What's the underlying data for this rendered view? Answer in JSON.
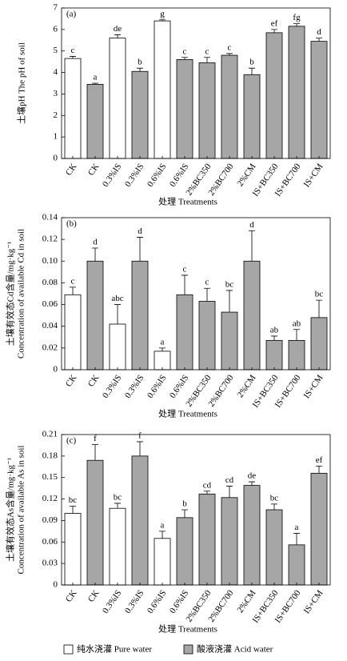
{
  "legend": [
    {
      "name": "纯水浇灌 Pure water",
      "color": "#ffffff"
    },
    {
      "name": "酸液浇灌 Acid water",
      "color": "#a6a6a6"
    }
  ],
  "chart_data": [
    {
      "type": "bar",
      "panel": "(a)",
      "y_title": [
        "土壤pH The pH of soil"
      ],
      "x_title": "处理 Treatments",
      "categories": [
        "CK",
        "CK",
        "0.3%IS",
        "0.3%IS",
        "0.6%IS",
        "0.6%IS",
        "2%BC350",
        "2%BC700",
        "2%CM",
        "IS+BC350",
        "IS+BC700",
        "IS+CM"
      ],
      "series": [
        {
          "values": [
            4.65,
            null,
            5.6,
            null,
            6.4,
            null,
            null,
            null,
            null,
            null,
            null,
            null
          ],
          "errors": [
            0.1,
            null,
            0.15,
            null,
            0.05,
            null,
            null,
            null,
            null,
            null,
            null,
            null
          ],
          "letters": [
            "c",
            null,
            "de",
            null,
            "g",
            null,
            null,
            null,
            null,
            null,
            null,
            null
          ]
        },
        {
          "values": [
            null,
            3.45,
            null,
            4.05,
            null,
            4.6,
            4.45,
            4.8,
            3.9,
            5.85,
            6.15,
            5.45
          ],
          "errors": [
            null,
            0.05,
            null,
            0.15,
            null,
            0.1,
            0.25,
            0.08,
            0.3,
            0.15,
            0.12,
            0.15
          ],
          "letters": [
            null,
            "a",
            null,
            "b",
            null,
            "c",
            "c",
            "c",
            "b",
            "ef",
            "fg",
            "d"
          ]
        }
      ],
      "ylim": [
        0,
        7
      ],
      "yticks": [
        0,
        1,
        2,
        3,
        4,
        5,
        6,
        7
      ]
    },
    {
      "type": "bar",
      "panel": "(b)",
      "y_title": [
        "土壤有效态Cd含量/mg·kg⁻¹",
        "Concentration of available Cd in soil"
      ],
      "x_title": "处理 Treatments",
      "categories": [
        "CK",
        "CK",
        "0.3%IS",
        "0.3%IS",
        "0.6%IS",
        "0.6%IS",
        "2%BC350",
        "2%BC700",
        "2%CM",
        "IS+BC350",
        "IS+BC700",
        "IS+CM"
      ],
      "series": [
        {
          "values": [
            0.069,
            null,
            0.042,
            null,
            0.017,
            null,
            null,
            null,
            null,
            null,
            null,
            null
          ],
          "errors": [
            0.007,
            null,
            0.018,
            null,
            0.003,
            null,
            null,
            null,
            null,
            null,
            null,
            null
          ],
          "letters": [
            "c",
            null,
            "abc",
            null,
            "a",
            null,
            null,
            null,
            null,
            null,
            null,
            null
          ]
        },
        {
          "values": [
            null,
            0.1,
            null,
            0.1,
            null,
            0.069,
            0.063,
            0.053,
            0.1,
            0.027,
            0.027,
            0.048
          ],
          "errors": [
            null,
            0.012,
            null,
            0.022,
            null,
            0.018,
            0.012,
            0.02,
            0.028,
            0.004,
            0.01,
            0.016
          ],
          "letters": [
            null,
            "d",
            null,
            "d",
            null,
            "c",
            "c",
            "bc",
            "d",
            "ab",
            "ab",
            "bc"
          ]
        }
      ],
      "ylim": [
        0,
        0.14
      ],
      "yticks": [
        0,
        0.02,
        0.04,
        0.06,
        0.08,
        {
          "value": 0.1,
          "label": "0.10"
        },
        0.12,
        0.14
      ]
    },
    {
      "type": "bar",
      "panel": "(c)",
      "y_title": [
        "土壤有效态As含量/mg·kg⁻¹",
        "Concentration of available As in soil"
      ],
      "x_title": "处理 Treatments",
      "categories": [
        "CK",
        "CK",
        "0.3%IS",
        "0.3%IS",
        "0.6%IS",
        "0.6%IS",
        "2%BC350",
        "2%BC700",
        "2%CM",
        "IS+BC350",
        "IS+BC700",
        "IS+CM"
      ],
      "series": [
        {
          "values": [
            0.1,
            null,
            0.107,
            null,
            0.065,
            null,
            null,
            null,
            null,
            null,
            null,
            null
          ],
          "errors": [
            0.01,
            null,
            0.007,
            null,
            0.01,
            null,
            null,
            null,
            null,
            null,
            null,
            null
          ],
          "letters": [
            "bc",
            null,
            "bc",
            null,
            "a",
            null,
            null,
            null,
            null,
            null,
            null,
            null
          ]
        },
        {
          "values": [
            null,
            0.174,
            null,
            0.18,
            null,
            0.094,
            0.127,
            0.122,
            0.139,
            0.105,
            0.056,
            0.156
          ],
          "errors": [
            null,
            0.022,
            null,
            0.02,
            null,
            0.011,
            0.004,
            0.016,
            0.005,
            0.008,
            0.016,
            0.01
          ],
          "letters": [
            null,
            "f",
            null,
            "f",
            null,
            "b",
            "cd",
            "cd",
            "de",
            "bc",
            "a",
            "ef"
          ]
        }
      ],
      "ylim": [
        0,
        0.21
      ],
      "yticks": [
        0,
        0.03,
        0.06,
        0.09,
        0.12,
        0.15,
        0.18,
        0.21
      ]
    }
  ]
}
